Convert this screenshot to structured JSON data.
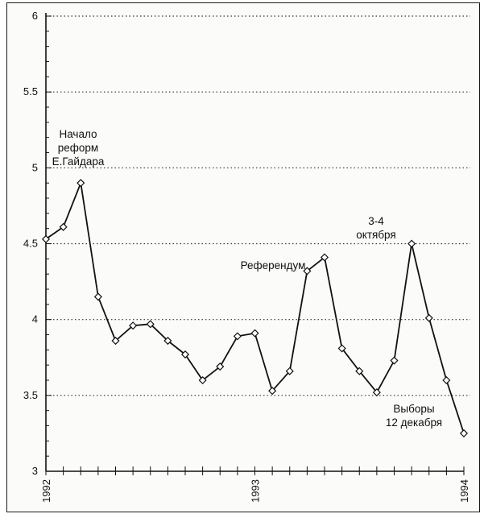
{
  "chart_data": {
    "type": "line",
    "title": "",
    "xlabel": "",
    "ylabel": "",
    "ylim": [
      3,
      6
    ],
    "yticks": [
      "3",
      "3.5",
      "4",
      "4.5",
      "5",
      "5.5",
      "6"
    ],
    "xticks": [
      "1992",
      "1993",
      "1994"
    ],
    "grid": "horizontal dotted at 3.5, 4, 4.5, 5, 5.5, 6",
    "series": [
      {
        "x": [
          0,
          1,
          2,
          3,
          4,
          5,
          6,
          7,
          8,
          9,
          10,
          11,
          12,
          13,
          14,
          15,
          16,
          17,
          18,
          19,
          20,
          21,
          22,
          23,
          24
        ],
        "values": [
          4.53,
          4.61,
          4.9,
          4.15,
          3.86,
          3.96,
          3.97,
          3.86,
          3.77,
          3.6,
          3.69,
          3.89,
          3.91,
          3.53,
          3.66,
          4.32,
          4.41,
          3.81,
          3.66,
          3.52,
          3.73,
          4.5,
          4.01,
          3.6,
          3.25
        ]
      }
    ],
    "annotations": [
      {
        "lines": [
          "Начало",
          "реформ",
          "Е.Гайдара"
        ]
      },
      {
        "lines": [
          "Референдум"
        ]
      },
      {
        "lines": [
          "3-4",
          "октября"
        ]
      },
      {
        "lines": [
          "Выборы",
          "12 декабря"
        ]
      }
    ]
  }
}
